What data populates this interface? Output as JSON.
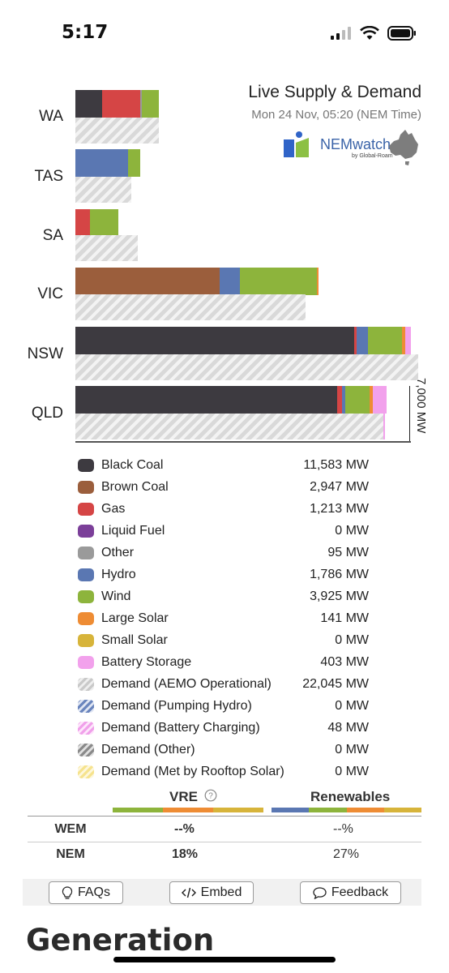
{
  "status_bar": {
    "time": "5:17"
  },
  "header": {
    "title": "Live Supply & Demand",
    "subtitle": "Mon 24 Nov, 05:20 (NEM Time)",
    "logo_text": "NEMwatch",
    "logo_sub": "by Global-Roam"
  },
  "chart": {
    "axis_label": "7,000 MW",
    "regions": [
      "WA",
      "TAS",
      "SA",
      "VIC",
      "NSW",
      "QLD"
    ]
  },
  "colors": {
    "black_coal": "#3d3a40",
    "brown_coal": "#9b5e3c",
    "gas": "#d54545",
    "liquid_fuel": "#7b3f99",
    "other": "#9a9a9a",
    "hydro": "#5a77b2",
    "wind": "#8db43c",
    "large_solar": "#ee8c34",
    "small_solar": "#d7b43a",
    "battery": "#f2a1ec"
  },
  "legend": [
    {
      "name": "Black Coal",
      "value": "11,583 MW",
      "icon": "black-coal-swatch"
    },
    {
      "name": "Brown Coal",
      "value": "2,947 MW",
      "icon": "brown-coal-swatch"
    },
    {
      "name": "Gas",
      "value": "1,213 MW",
      "icon": "gas-swatch"
    },
    {
      "name": "Liquid Fuel",
      "value": "0 MW",
      "icon": "liquid-fuel-swatch"
    },
    {
      "name": "Other",
      "value": "95 MW",
      "icon": "other-swatch"
    },
    {
      "name": "Hydro",
      "value": "1,786 MW",
      "icon": "hydro-swatch"
    },
    {
      "name": "Wind",
      "value": "3,925 MW",
      "icon": "wind-swatch"
    },
    {
      "name": "Large Solar",
      "value": "141 MW",
      "icon": "large-solar-swatch"
    },
    {
      "name": "Small Solar",
      "value": "0 MW",
      "icon": "small-solar-swatch"
    },
    {
      "name": "Battery Storage",
      "value": "403 MW",
      "icon": "battery-storage-swatch"
    },
    {
      "name": "Demand (AEMO Operational)",
      "value": "22,045 MW",
      "icon": "demand-operational-swatch"
    },
    {
      "name": "Demand (Pumping Hydro)",
      "value": "0 MW",
      "icon": "demand-pumping-hydro-swatch"
    },
    {
      "name": "Demand (Battery Charging)",
      "value": "48 MW",
      "icon": "demand-battery-charging-swatch"
    },
    {
      "name": "Demand (Other)",
      "value": "0 MW",
      "icon": "demand-other-swatch"
    },
    {
      "name": "Demand (Met by Rooftop Solar)",
      "value": "0 MW",
      "icon": "demand-rooftop-solar-swatch"
    }
  ],
  "percentages": {
    "vre_label": "VRE",
    "renewables_label": "Renewables",
    "rows": [
      {
        "market": "WEM",
        "vre": "--%",
        "renewables": "--%"
      },
      {
        "market": "NEM",
        "vre": "18%",
        "renewables": "27%"
      }
    ]
  },
  "footer": {
    "faqs": "FAQs",
    "embed": "Embed",
    "feedback": "Feedback"
  },
  "section": {
    "title": "Generation"
  }
}
